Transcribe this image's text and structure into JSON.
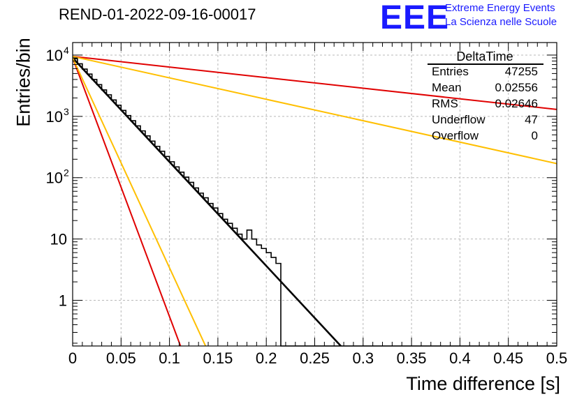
{
  "header": {
    "title": "REND-01-2022-09-16-00017"
  },
  "logo": {
    "mark": "EEE",
    "line1": "Extreme Energy Events",
    "line2": "La Scienza nelle Scuole",
    "color": "#1a1aff"
  },
  "stats_box": {
    "title": "DeltaTime",
    "rows": [
      {
        "label": "Entries",
        "value": "47255"
      },
      {
        "label": "Mean",
        "value": "0.02556"
      },
      {
        "label": "RMS",
        "value": "0.02646"
      },
      {
        "label": "Underflow",
        "value": "47"
      },
      {
        "label": "Overflow",
        "value": "0"
      }
    ]
  },
  "chart_data": {
    "type": "line",
    "title": "REND-01-2022-09-16-00017",
    "xlabel": "Time difference [s]",
    "ylabel": "Entries/bin",
    "xlim": [
      0,
      0.5
    ],
    "ylim": [
      0.18,
      16000
    ],
    "y_scale": "log",
    "grid": true,
    "x_ticks": [
      "0",
      "0.05",
      "0.1",
      "0.15",
      "0.2",
      "0.25",
      "0.3",
      "0.35",
      "0.4",
      "0.45",
      "0.5"
    ],
    "y_ticks": [
      {
        "value": 1,
        "label": "1"
      },
      {
        "value": 10,
        "label": "10"
      },
      {
        "value": 100,
        "label": "10",
        "exp": "2"
      },
      {
        "value": 1000,
        "label": "10",
        "exp": "3"
      },
      {
        "value": 10000,
        "label": "10",
        "exp": "4"
      }
    ],
    "histogram": {
      "bin_width": 0.005,
      "counts": [
        8700,
        7200,
        5900,
        4900,
        4000,
        3300,
        2700,
        2250,
        1850,
        1520,
        1250,
        1030,
        850,
        700,
        580,
        480,
        395,
        325,
        270,
        222,
        182,
        150,
        123,
        102,
        84,
        68,
        56,
        47,
        38,
        32,
        26,
        21,
        18,
        15,
        12,
        10,
        14,
        10,
        8,
        7,
        6,
        5,
        4,
        0,
        0,
        0,
        0,
        0,
        0,
        0,
        0,
        0,
        0,
        0,
        0,
        0,
        0,
        0,
        0,
        0,
        0,
        0,
        0,
        0,
        0,
        0,
        0,
        0,
        0,
        0,
        0,
        0,
        0,
        0,
        0,
        0,
        0,
        0,
        0,
        0,
        0,
        0,
        0,
        0,
        0,
        0,
        0,
        0,
        0,
        0,
        0,
        0,
        0,
        0,
        0,
        0,
        0,
        0,
        0,
        0
      ]
    },
    "series": [
      {
        "name": "",
        "color": "#000000",
        "x": [
          0,
          0.28
        ],
        "y": [
          9000,
          0.16
        ]
      },
      {
        "name": "",
        "color": "#e00000",
        "x": [
          0,
          0.5
        ],
        "y": [
          9500,
          1300
        ]
      },
      {
        "name": "",
        "color": "#ffbf00",
        "x": [
          0,
          0.5
        ],
        "y": [
          9500,
          170
        ]
      },
      {
        "name": "",
        "color": "#e00000",
        "x": [
          0,
          0.112
        ],
        "y": [
          9000,
          0.17
        ]
      },
      {
        "name": "",
        "color": "#ffbf00",
        "x": [
          0,
          0.138
        ],
        "y": [
          9000,
          0.17
        ]
      }
    ]
  }
}
